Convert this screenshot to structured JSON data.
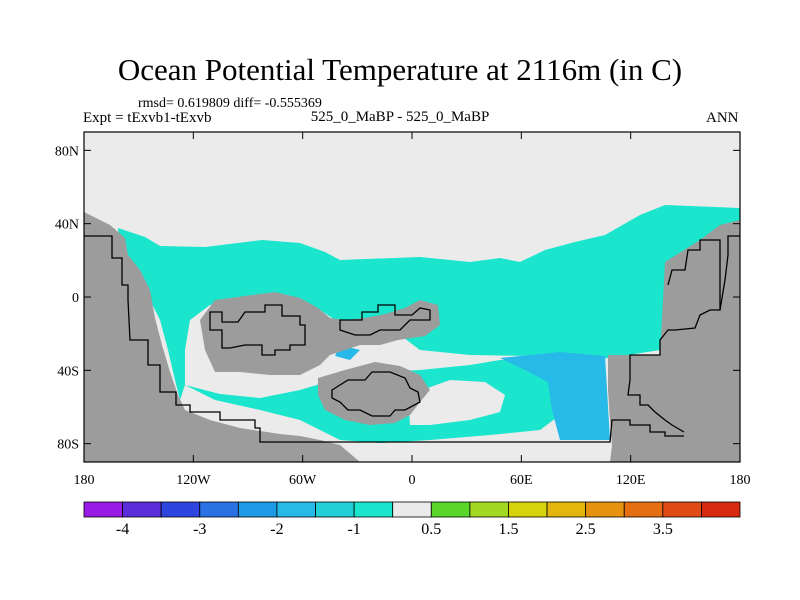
{
  "title": "Ocean Potential Temperature at 2116m (in C)",
  "stats": "rmsd= 0.619809 diff= -0.555369",
  "expt": "Expt = tExvb1-tExvb",
  "subtitle": "525_0_MaBP - 525_0_MaBP",
  "season": "ANN",
  "colors": {
    "land": "#9c9c9c",
    "cyan": "#1be5cc",
    "teal": "#0cd6b4",
    "light_blue": "#27b9e7",
    "near_zero": "#ebebeb"
  },
  "chart_data": {
    "type": "heatmap",
    "title": "Ocean Potential Temperature at 2116m (in C)",
    "subtitle": "525_0_MaBP - 525_0_MaBP",
    "units": "C",
    "season": "ANN",
    "rmsd": 0.619809,
    "diff": -0.555369,
    "x_ticks": [
      "180",
      "120W",
      "60W",
      "0",
      "60E",
      "120E",
      "180"
    ],
    "x_range": [
      -180,
      180
    ],
    "y_ticks": [
      "80N",
      "40N",
      "0",
      "40S",
      "80S"
    ],
    "y_range": [
      -90,
      90
    ],
    "colorbar": {
      "labels": [
        "-4",
        "-3",
        "-2",
        "-1",
        "0.5",
        "1.5",
        "2.5",
        "3.5"
      ],
      "colors": [
        "#9a1ae6",
        "#5a2ed9",
        "#2f45e0",
        "#2a72e3",
        "#1e9ae6",
        "#27b9e7",
        "#20d0d6",
        "#1be5cc",
        "#ebebeb",
        "#5ad52a",
        "#a2d81f",
        "#d6d20c",
        "#e2b60c",
        "#e6920f",
        "#e66e12",
        "#e04a14",
        "#d82a10"
      ]
    }
  }
}
